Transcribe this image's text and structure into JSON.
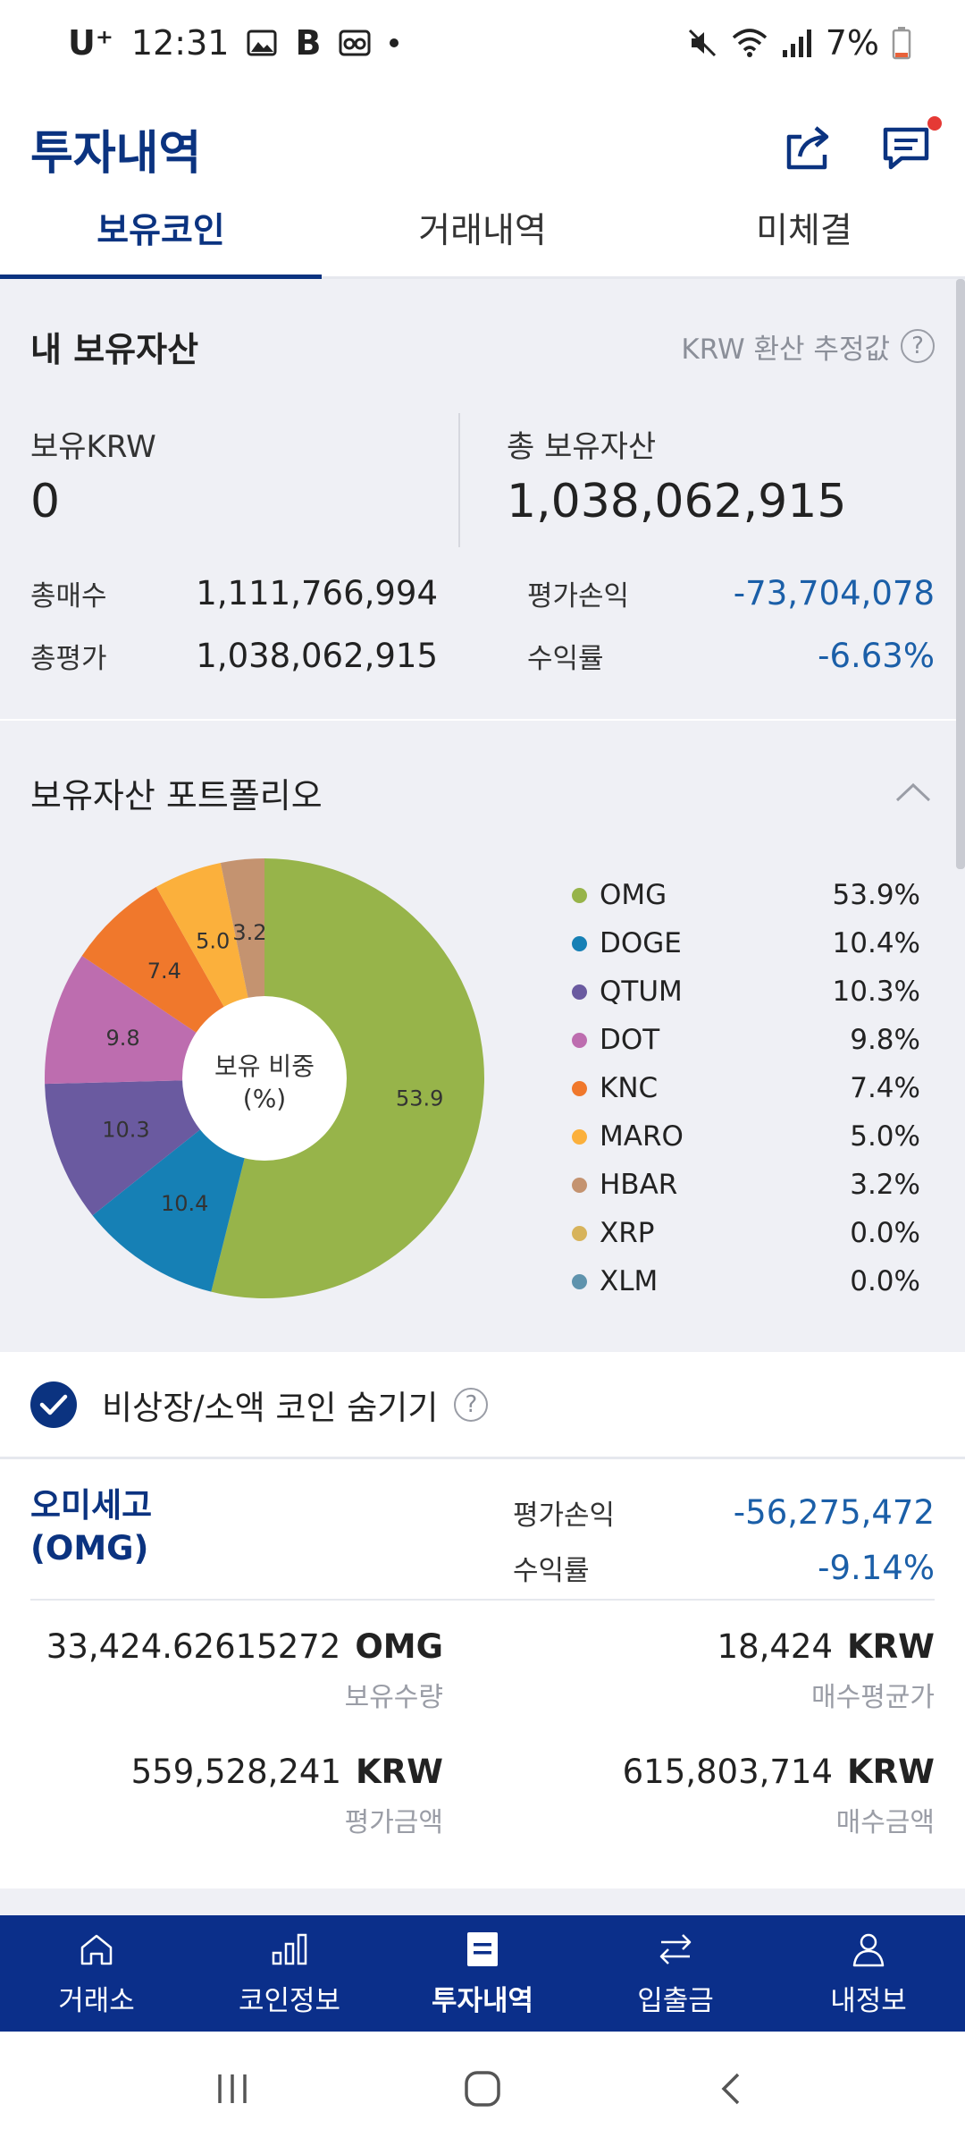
{
  "status_bar": {
    "carrier": "U⁺",
    "time": "12:31",
    "battery": "7%",
    "icons": [
      "image-icon",
      "b-icon",
      "voicemail-icon",
      "dot-icon",
      "mute-icon",
      "wifi-icon",
      "signal-icon",
      "battery-icon"
    ]
  },
  "header": {
    "title": "투자내역",
    "actions": [
      "share-icon",
      "chat-icon"
    ]
  },
  "tabs": [
    {
      "label": "보유코인",
      "active": true
    },
    {
      "label": "거래내역",
      "active": false
    },
    {
      "label": "미체결",
      "active": false
    }
  ],
  "summary": {
    "title": "내 보유자산",
    "krw_note": "KRW 환산 추정값",
    "krw_label": "보유KRW",
    "krw_value": "0",
    "total_label": "총 보유자산",
    "total_value": "1,038,062,915",
    "rows_left": [
      {
        "label": "총매수",
        "value": "1,111,766,994"
      },
      {
        "label": "총평가",
        "value": "1,038,062,915"
      }
    ],
    "rows_right": [
      {
        "label": "평가손익",
        "value": "-73,704,078"
      },
      {
        "label": "수익률",
        "value": "-6.63%"
      }
    ]
  },
  "portfolio": {
    "title": "보유자산 포트폴리오",
    "center_line1": "보유 비중",
    "center_line2": "(%)"
  },
  "chart_data": {
    "type": "pie",
    "categories": [
      "OMG",
      "DOGE",
      "QTUM",
      "DOT",
      "KNC",
      "MARO",
      "HBAR",
      "XRP",
      "XLM"
    ],
    "values": [
      53.9,
      10.4,
      10.3,
      9.8,
      7.4,
      5.0,
      3.2,
      0.0,
      0.0
    ],
    "legend_values": [
      "53.9%",
      "10.4%",
      "10.3%",
      "9.8%",
      "7.4%",
      "5.0%",
      "3.2%",
      "0.0%",
      "0.0%"
    ],
    "slice_labels": [
      "53.9",
      "10.4",
      "10.3",
      "9.8",
      "7.4",
      "5.0",
      "3.2",
      "",
      ""
    ],
    "colors": [
      "#97b44a",
      "#1680b5",
      "#6a5aa0",
      "#bd6daf",
      "#f0782c",
      "#fbb03c",
      "#c49370",
      "#d7b35b",
      "#5f93ad"
    ],
    "legend_placement": "right"
  },
  "hide_row": {
    "label": "비상장/소액 코인 숨기기",
    "checked": true
  },
  "coin": {
    "name_line1": "오미세고",
    "name_line2": "(OMG)",
    "pnl_label": "평가손익",
    "pnl_value": "-56,275,472",
    "roi_label": "수익률",
    "roi_value": "-9.14%",
    "cells": [
      {
        "value": "33,424.62615272",
        "unit": "OMG",
        "label": "보유수량"
      },
      {
        "value": "18,424",
        "unit": "KRW",
        "label": "매수평균가"
      },
      {
        "value": "559,528,241",
        "unit": "KRW",
        "label": "평가금액"
      },
      {
        "value": "615,803,714",
        "unit": "KRW",
        "label": "매수금액"
      }
    ]
  },
  "bottom_nav": [
    {
      "label": "거래소",
      "icon": "home-icon",
      "active": false
    },
    {
      "label": "코인정보",
      "icon": "chart-icon",
      "active": false
    },
    {
      "label": "투자내역",
      "icon": "document-icon",
      "active": true
    },
    {
      "label": "입출금",
      "icon": "transfer-icon",
      "active": false
    },
    {
      "label": "내정보",
      "icon": "person-icon",
      "active": false
    }
  ]
}
